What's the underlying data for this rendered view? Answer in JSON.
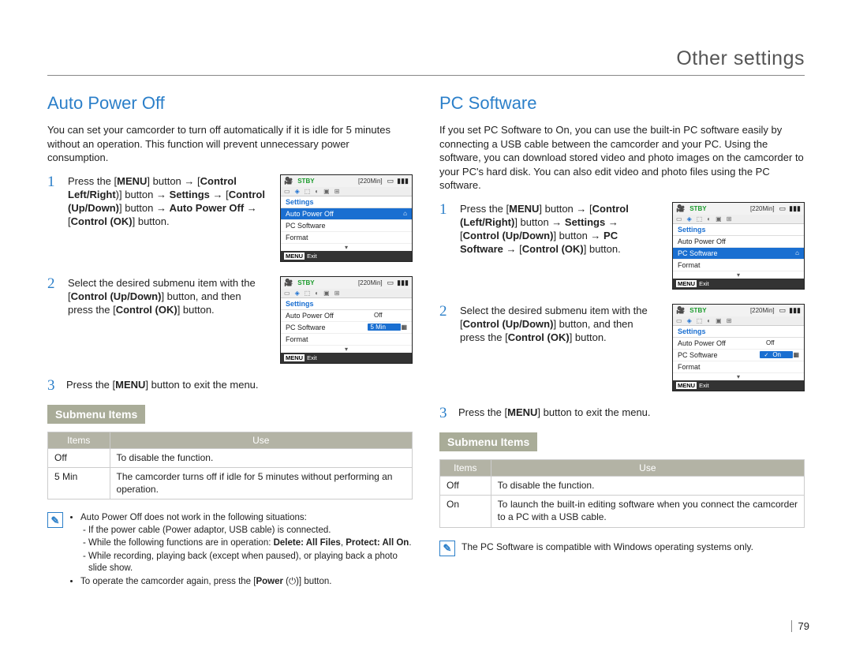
{
  "header_title": "Other settings",
  "page_number": "79",
  "colors": {
    "accent_blue": "#2b7fc9",
    "menu_blue": "#1a6fd1",
    "submenu_tag_bg": "#a9ac98",
    "table_header_bg": "#b3b3a5",
    "stby_green": "#1a9b2b"
  },
  "left": {
    "title": "Auto Power Off",
    "intro": "You can set your camcorder to turn off automatically if it is idle for 5 minutes without an operation. This function will prevent unnecessary power consumption.",
    "steps": [
      "Press the [<b>MENU</b>] button → [<b>Control Left/Right</b>)] button → <b>Settings</b> → [<b>Control (Up/Down)</b>] button → <b>Auto Power Off</b> → [<b>Control (OK)</b>] button.",
      "Select the desired submenu item with the [<b>Control (Up/Down)</b>] button, and then press the [<b>Control (OK)</b>] button.",
      "Press the [<b>MENU</b>] button to exit the menu."
    ],
    "screen1": {
      "stby": "STBY",
      "time": "[220Min]",
      "settings": "Settings",
      "rows": [
        {
          "label": "Auto Power Off",
          "hl": true
        },
        {
          "label": "PC Software"
        },
        {
          "label": "Format"
        }
      ],
      "exit": "Exit"
    },
    "screen2": {
      "stby": "STBY",
      "time": "[220Min]",
      "settings": "Settings",
      "rows": [
        {
          "label": "Auto Power Off",
          "val": "Off"
        },
        {
          "label": "PC Software",
          "val": "5 Min",
          "val_hl": true
        },
        {
          "label": "Format"
        }
      ],
      "exit": "Exit"
    },
    "submenu_label": "Submenu Items",
    "table": {
      "headers": [
        "Items",
        "Use"
      ],
      "rows": [
        [
          "Off",
          "To disable the function."
        ],
        [
          "5 Min",
          "The camcorder turns off if idle for 5 minutes without performing an operation."
        ]
      ]
    },
    "notes": [
      "Auto Power Off does not work in the following situations:",
      "If the power cable (Power adaptor, USB cable) is connected.",
      "While the following functions are in operation: <b>Delete: All Files</b>, <b>Protect: All On</b>.",
      "While recording, playing back (except when paused), or playing back a photo slide show.",
      "To operate the camcorder again, press the [<b>Power</b> (⏻)] button."
    ]
  },
  "right": {
    "title": "PC Software",
    "intro": "If you set PC Software to On, you can use the built-in PC software easily by connecting a USB cable between the camcorder and your PC. Using the software, you can download stored video and photo images on the camcorder to your PC's hard disk. You can also edit video and photo files using the PC software.",
    "steps": [
      "Press the [<b>MENU</b>] button → [<b>Control (Left/Right)</b>] button → <b>Settings</b> → [<b>Control (Up/Down)</b>] button → <b>PC Software</b> → [<b>Control (OK)</b>] button.",
      "Select the desired submenu item with the [<b>Control (Up/Down)</b>] button, and then press the [<b>Control (OK)</b>] button.",
      "Press the [<b>MENU</b>] button to exit the menu."
    ],
    "screen1": {
      "stby": "STBY",
      "time": "[220Min]",
      "settings": "Settings",
      "rows": [
        {
          "label": "Auto Power Off"
        },
        {
          "label": "PC Software",
          "hl": true
        },
        {
          "label": "Format"
        }
      ],
      "exit": "Exit"
    },
    "screen2": {
      "stby": "STBY",
      "time": "[220Min]",
      "settings": "Settings",
      "rows": [
        {
          "label": "Auto Power Off",
          "val": "Off"
        },
        {
          "label": "PC Software",
          "val": "On",
          "val_hl": true,
          "tick": true
        },
        {
          "label": "Format"
        }
      ],
      "exit": "Exit"
    },
    "submenu_label": "Submenu Items",
    "table": {
      "headers": [
        "Items",
        "Use"
      ],
      "rows": [
        [
          "Off",
          "To disable the function."
        ],
        [
          "On",
          "To launch the built-in editing software when you connect the camcorder to a PC with a USB cable."
        ]
      ]
    },
    "note_single": "The PC Software is compatible with Windows operating systems only."
  }
}
